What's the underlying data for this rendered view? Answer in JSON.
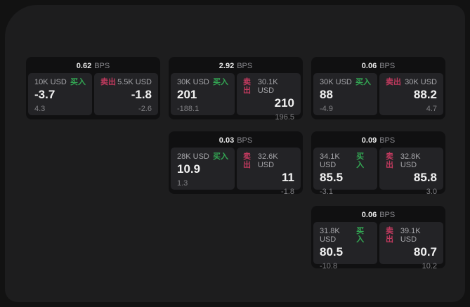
{
  "theme": {
    "page_bg": "#121212",
    "surface_bg": "#1d1d1e",
    "card_bg": "#101011",
    "panel_bg": "#232326",
    "buy_color": "#33a653",
    "sell_color": "#c23a5f",
    "value_color": "#f1f1f1",
    "muted_color": "#8a8a8f"
  },
  "labels": {
    "bps": "BPS",
    "buy": "买入",
    "sell": "卖出"
  },
  "cards": [
    {
      "bps": "0.62",
      "buy": {
        "notional": "10K USD",
        "price": "-3.7",
        "delta": "4.3"
      },
      "sell": {
        "notional": "5.5K USD",
        "price": "-1.8",
        "delta": "-2.6"
      }
    },
    {
      "bps": "2.92",
      "buy": {
        "notional": "30K USD",
        "price": "201",
        "delta": "-188.1"
      },
      "sell": {
        "notional": "30.1K USD",
        "price": "210",
        "delta": "196.5"
      }
    },
    {
      "bps": "0.06",
      "buy": {
        "notional": "30K USD",
        "price": "88",
        "delta": "-4.9"
      },
      "sell": {
        "notional": "30K USD",
        "price": "88.2",
        "delta": "4.7"
      }
    },
    {
      "bps": "0.03",
      "buy": {
        "notional": "28K USD",
        "price": "10.9",
        "delta": "1.3"
      },
      "sell": {
        "notional": "32.6K USD",
        "price": "11",
        "delta": "-1.8"
      }
    },
    {
      "bps": "0.09",
      "buy": {
        "notional": "34.1K USD",
        "price": "85.5",
        "delta": "-3.1"
      },
      "sell": {
        "notional": "32.8K USD",
        "price": "85.8",
        "delta": "3.0"
      }
    },
    {
      "bps": "0.06",
      "buy": {
        "notional": "31.8K USD",
        "price": "80.5",
        "delta": "-10.8"
      },
      "sell": {
        "notional": "39.1K USD",
        "price": "80.7",
        "delta": "10.2"
      }
    }
  ]
}
